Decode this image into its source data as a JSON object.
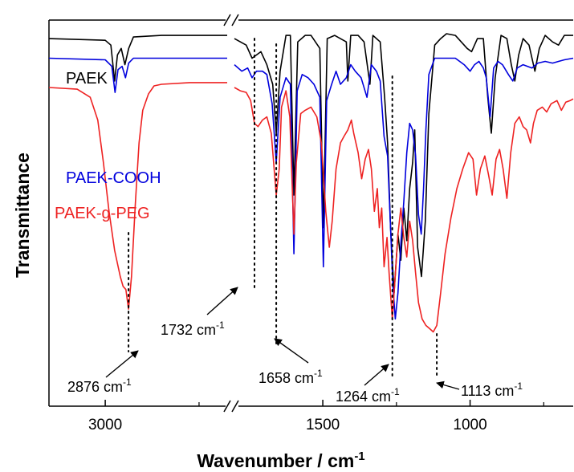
{
  "chart_data": {
    "type": "line",
    "xlabel": "Wavenumber / cm",
    "xlabel_sup": "-1",
    "ylabel": "Transmittance",
    "x_reversed": true,
    "x_axis_break": [
      2350,
      1800
    ],
    "x_range_left": [
      3300,
      2350
    ],
    "x_range_right": [
      1800,
      650
    ],
    "x_ticks": [
      {
        "value": 3000,
        "label": "3000"
      },
      {
        "value": 1500,
        "label": "1500"
      },
      {
        "value": 1000,
        "label": "1000"
      }
    ],
    "y_ticks_shown": false,
    "series": [
      {
        "name": "PAEK",
        "color": "#000000",
        "points": [
          [
            3300,
            0.98
          ],
          [
            3000,
            0.975
          ],
          [
            2970,
            0.96
          ],
          [
            2950,
            0.85
          ],
          [
            2935,
            0.93
          ],
          [
            2915,
            0.95
          ],
          [
            2895,
            0.9
          ],
          [
            2875,
            0.95
          ],
          [
            2850,
            0.985
          ],
          [
            2700,
            0.99
          ],
          [
            2350,
            0.99
          ],
          [
            1800,
            0.98
          ],
          [
            1760,
            0.96
          ],
          [
            1740,
            0.92
          ],
          [
            1710,
            0.94
          ],
          [
            1690,
            0.9
          ],
          [
            1670,
            0.84
          ],
          [
            1658,
            0.69
          ],
          [
            1645,
            0.88
          ],
          [
            1625,
            0.99
          ],
          [
            1610,
            0.99
          ],
          [
            1598,
            0.5
          ],
          [
            1585,
            0.97
          ],
          [
            1560,
            0.99
          ],
          [
            1540,
            0.99
          ],
          [
            1510,
            0.95
          ],
          [
            1498,
            0.4
          ],
          [
            1485,
            0.98
          ],
          [
            1460,
            0.99
          ],
          [
            1420,
            0.97
          ],
          [
            1415,
            0.85
          ],
          [
            1405,
            0.99
          ],
          [
            1380,
            0.99
          ],
          [
            1360,
            0.97
          ],
          [
            1340,
            0.84
          ],
          [
            1330,
            0.99
          ],
          [
            1305,
            0.97
          ],
          [
            1290,
            0.8
          ],
          [
            1280,
            0.66
          ],
          [
            1270,
            0.4
          ],
          [
            1258,
            0.2
          ],
          [
            1245,
            0.38
          ],
          [
            1235,
            0.3
          ],
          [
            1225,
            0.46
          ],
          [
            1215,
            0.36
          ],
          [
            1205,
            0.52
          ],
          [
            1195,
            0.6
          ],
          [
            1188,
            0.7
          ],
          [
            1178,
            0.34
          ],
          [
            1165,
            0.25
          ],
          [
            1152,
            0.42
          ],
          [
            1140,
            0.75
          ],
          [
            1120,
            0.96
          ],
          [
            1100,
            0.98
          ],
          [
            1080,
            0.995
          ],
          [
            1050,
            0.99
          ],
          [
            1010,
            0.95
          ],
          [
            995,
            0.94
          ],
          [
            975,
            0.98
          ],
          [
            955,
            0.98
          ],
          [
            940,
            0.8
          ],
          [
            928,
            0.69
          ],
          [
            915,
            0.86
          ],
          [
            895,
            0.99
          ],
          [
            875,
            0.98
          ],
          [
            860,
            0.9
          ],
          [
            848,
            0.85
          ],
          [
            835,
            0.93
          ],
          [
            820,
            0.98
          ],
          [
            800,
            0.96
          ],
          [
            780,
            0.88
          ],
          [
            765,
            0.95
          ],
          [
            745,
            0.99
          ],
          [
            720,
            0.97
          ],
          [
            700,
            0.96
          ],
          [
            680,
            0.99
          ],
          [
            650,
            0.99
          ]
        ]
      },
      {
        "name": "PAEK-COOH",
        "color": "#0000dd",
        "points": [
          [
            3300,
            0.92
          ],
          [
            3000,
            0.915
          ],
          [
            2965,
            0.895
          ],
          [
            2948,
            0.815
          ],
          [
            2932,
            0.885
          ],
          [
            2910,
            0.895
          ],
          [
            2892,
            0.86
          ],
          [
            2875,
            0.905
          ],
          [
            2850,
            0.92
          ],
          [
            2700,
            0.92
          ],
          [
            2350,
            0.92
          ],
          [
            1800,
            0.9
          ],
          [
            1775,
            0.88
          ],
          [
            1755,
            0.89
          ],
          [
            1740,
            0.86
          ],
          [
            1725,
            0.88
          ],
          [
            1705,
            0.88
          ],
          [
            1690,
            0.87
          ],
          [
            1672,
            0.78
          ],
          [
            1658,
            0.6
          ],
          [
            1645,
            0.8
          ],
          [
            1625,
            0.86
          ],
          [
            1610,
            0.84
          ],
          [
            1598,
            0.32
          ],
          [
            1587,
            0.82
          ],
          [
            1570,
            0.87
          ],
          [
            1550,
            0.86
          ],
          [
            1530,
            0.84
          ],
          [
            1510,
            0.8
          ],
          [
            1498,
            0.28
          ],
          [
            1487,
            0.79
          ],
          [
            1470,
            0.84
          ],
          [
            1455,
            0.88
          ],
          [
            1440,
            0.84
          ],
          [
            1420,
            0.86
          ],
          [
            1405,
            0.9
          ],
          [
            1390,
            0.88
          ],
          [
            1370,
            0.86
          ],
          [
            1350,
            0.8
          ],
          [
            1335,
            0.9
          ],
          [
            1318,
            0.88
          ],
          [
            1305,
            0.85
          ],
          [
            1292,
            0.68
          ],
          [
            1280,
            0.62
          ],
          [
            1270,
            0.4
          ],
          [
            1262,
            0.22
          ],
          [
            1254,
            0.12
          ],
          [
            1245,
            0.2
          ],
          [
            1235,
            0.35
          ],
          [
            1225,
            0.48
          ],
          [
            1215,
            0.63
          ],
          [
            1205,
            0.72
          ],
          [
            1195,
            0.7
          ],
          [
            1185,
            0.62
          ],
          [
            1175,
            0.44
          ],
          [
            1166,
            0.38
          ],
          [
            1158,
            0.52
          ],
          [
            1150,
            0.7
          ],
          [
            1140,
            0.87
          ],
          [
            1120,
            0.92
          ],
          [
            1100,
            0.92
          ],
          [
            1050,
            0.92
          ],
          [
            1020,
            0.9
          ],
          [
            1000,
            0.88
          ],
          [
            985,
            0.9
          ],
          [
            970,
            0.91
          ],
          [
            955,
            0.89
          ],
          [
            945,
            0.86
          ],
          [
            932,
            0.74
          ],
          [
            920,
            0.89
          ],
          [
            905,
            0.91
          ],
          [
            890,
            0.9
          ],
          [
            870,
            0.87
          ],
          [
            855,
            0.85
          ],
          [
            840,
            0.89
          ],
          [
            820,
            0.9
          ],
          [
            790,
            0.89
          ],
          [
            770,
            0.905
          ],
          [
            745,
            0.91
          ],
          [
            720,
            0.905
          ],
          [
            700,
            0.91
          ],
          [
            680,
            0.915
          ],
          [
            650,
            0.92
          ]
        ]
      },
      {
        "name": "PAEK-g-PEG",
        "color": "#ee2222",
        "points": [
          [
            3300,
            0.83
          ],
          [
            3150,
            0.825
          ],
          [
            3080,
            0.8
          ],
          [
            3040,
            0.73
          ],
          [
            3010,
            0.6
          ],
          [
            2980,
            0.45
          ],
          [
            2950,
            0.33
          ],
          [
            2920,
            0.25
          ],
          [
            2905,
            0.22
          ],
          [
            2890,
            0.21
          ],
          [
            2876,
            0.15
          ],
          [
            2860,
            0.25
          ],
          [
            2840,
            0.47
          ],
          [
            2820,
            0.66
          ],
          [
            2800,
            0.76
          ],
          [
            2770,
            0.81
          ],
          [
            2740,
            0.835
          ],
          [
            2700,
            0.84
          ],
          [
            2550,
            0.845
          ],
          [
            2350,
            0.845
          ],
          [
            1800,
            0.83
          ],
          [
            1780,
            0.82
          ],
          [
            1760,
            0.815
          ],
          [
            1745,
            0.79
          ],
          [
            1732,
            0.72
          ],
          [
            1720,
            0.71
          ],
          [
            1705,
            0.73
          ],
          [
            1690,
            0.74
          ],
          [
            1675,
            0.69
          ],
          [
            1658,
            0.5
          ],
          [
            1648,
            0.58
          ],
          [
            1640,
            0.77
          ],
          [
            1625,
            0.82
          ],
          [
            1612,
            0.74
          ],
          [
            1598,
            0.38
          ],
          [
            1590,
            0.6
          ],
          [
            1575,
            0.75
          ],
          [
            1560,
            0.76
          ],
          [
            1540,
            0.77
          ],
          [
            1520,
            0.74
          ],
          [
            1505,
            0.66
          ],
          [
            1490,
            0.45
          ],
          [
            1478,
            0.34
          ],
          [
            1468,
            0.42
          ],
          [
            1455,
            0.58
          ],
          [
            1440,
            0.66
          ],
          [
            1428,
            0.68
          ],
          [
            1415,
            0.7
          ],
          [
            1403,
            0.73
          ],
          [
            1395,
            0.69
          ],
          [
            1380,
            0.63
          ],
          [
            1368,
            0.55
          ],
          [
            1356,
            0.61
          ],
          [
            1345,
            0.64
          ],
          [
            1335,
            0.58
          ],
          [
            1325,
            0.45
          ],
          [
            1315,
            0.52
          ],
          [
            1308,
            0.4
          ],
          [
            1300,
            0.46
          ],
          [
            1292,
            0.28
          ],
          [
            1282,
            0.37
          ],
          [
            1275,
            0.26
          ],
          [
            1264,
            0.12
          ],
          [
            1255,
            0.24
          ],
          [
            1245,
            0.38
          ],
          [
            1235,
            0.46
          ],
          [
            1225,
            0.37
          ],
          [
            1215,
            0.31
          ],
          [
            1205,
            0.42
          ],
          [
            1195,
            0.36
          ],
          [
            1185,
            0.26
          ],
          [
            1175,
            0.17
          ],
          [
            1163,
            0.12
          ],
          [
            1150,
            0.1
          ],
          [
            1137,
            0.09
          ],
          [
            1125,
            0.08
          ],
          [
            1113,
            0.1
          ],
          [
            1100,
            0.2
          ],
          [
            1085,
            0.32
          ],
          [
            1065,
            0.43
          ],
          [
            1045,
            0.52
          ],
          [
            1025,
            0.58
          ],
          [
            1005,
            0.63
          ],
          [
            990,
            0.61
          ],
          [
            978,
            0.5
          ],
          [
            965,
            0.58
          ],
          [
            950,
            0.62
          ],
          [
            937,
            0.56
          ],
          [
            925,
            0.5
          ],
          [
            912,
            0.61
          ],
          [
            900,
            0.64
          ],
          [
            888,
            0.58
          ],
          [
            875,
            0.49
          ],
          [
            862,
            0.63
          ],
          [
            848,
            0.72
          ],
          [
            833,
            0.74
          ],
          [
            820,
            0.71
          ],
          [
            808,
            0.7
          ],
          [
            795,
            0.66
          ],
          [
            785,
            0.72
          ],
          [
            772,
            0.76
          ],
          [
            755,
            0.77
          ],
          [
            740,
            0.755
          ],
          [
            725,
            0.78
          ],
          [
            705,
            0.79
          ],
          [
            690,
            0.76
          ],
          [
            675,
            0.785
          ],
          [
            660,
            0.79
          ],
          [
            650,
            0.795
          ]
        ]
      }
    ],
    "annotations": [
      {
        "id": "ann-2876",
        "text": "2876 cm",
        "sup": "-1",
        "x": 2876
      },
      {
        "id": "ann-1732",
        "text": "1732 cm",
        "sup": "-1",
        "x": 1732
      },
      {
        "id": "ann-1658",
        "text": "1658 cm",
        "sup": "-1",
        "x": 1658
      },
      {
        "id": "ann-1264",
        "text": "1264 cm",
        "sup": "-1",
        "x": 1264
      },
      {
        "id": "ann-1113",
        "text": "1113 cm",
        "sup": "-1",
        "x": 1113
      }
    ]
  }
}
